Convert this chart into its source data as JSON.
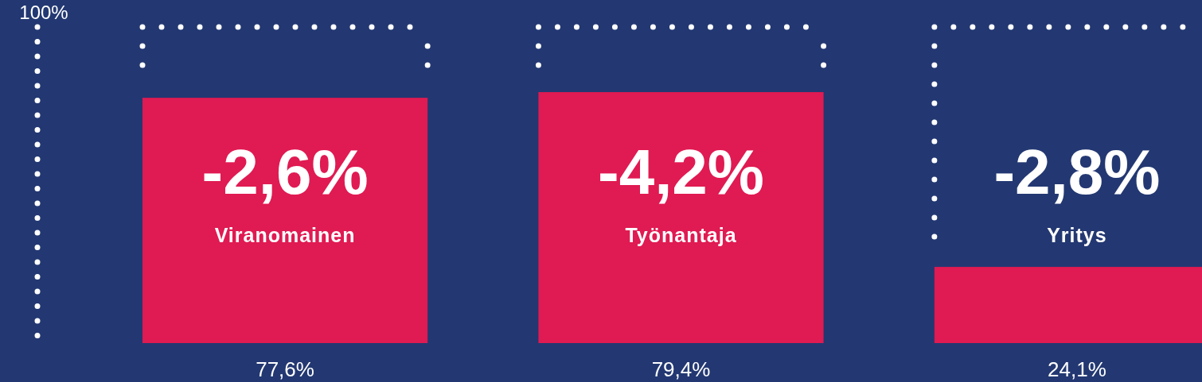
{
  "chart_data": {
    "type": "bar",
    "categories": [
      "Viranomainen",
      "Työnantaja",
      "Yritys"
    ],
    "values": [
      77.6,
      79.4,
      24.1
    ],
    "value_labels": [
      "77,6%",
      "79,4%",
      "24,1%"
    ],
    "color": "#e01a52",
    "ref_lines": [
      {
        "axis": "y",
        "value": 100,
        "label": "100%",
        "color": "#ffffff",
        "line_style": "dotted"
      }
    ],
    "annotations": [
      "-2,6%",
      "-4,2%",
      "-2,8%"
    ]
  }
}
